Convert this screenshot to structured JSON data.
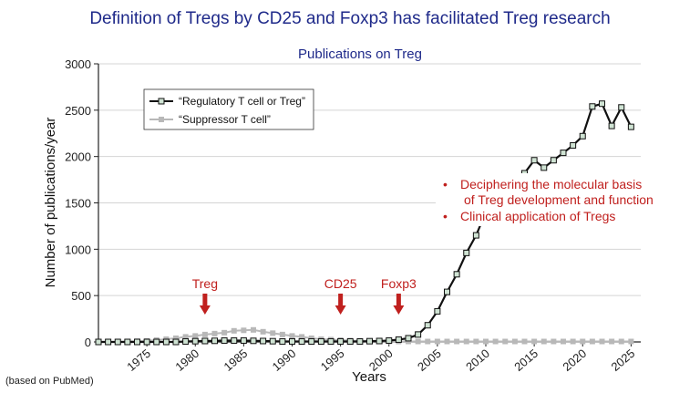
{
  "header": {
    "title": "Definition of Tregs by CD25 and Foxp3 has facilitated Treg research"
  },
  "footnote": "(based on PubMed)",
  "chart_data": {
    "type": "line",
    "title": "Publications on Treg",
    "xlabel": "Years",
    "ylabel": "Number of publications/year",
    "xlim": [
      1970,
      2026
    ],
    "ylim": [
      0,
      3000
    ],
    "xticks": [
      1975,
      1980,
      1985,
      1990,
      1995,
      2000,
      2005,
      2010,
      2015,
      2020,
      2025
    ],
    "yticks": [
      0,
      500,
      1000,
      1500,
      2000,
      2500,
      3000
    ],
    "grid": true,
    "legend_position": "top-left",
    "series": [
      {
        "name": "“Regulatory T cell or Treg”",
        "color": "#111111",
        "marker_fill": "#cfe3d3",
        "x": [
          1970,
          1971,
          1972,
          1973,
          1974,
          1975,
          1976,
          1977,
          1978,
          1979,
          1980,
          1981,
          1982,
          1983,
          1984,
          1985,
          1986,
          1987,
          1988,
          1989,
          1990,
          1991,
          1992,
          1993,
          1994,
          1995,
          1996,
          1997,
          1998,
          1999,
          2000,
          2001,
          2002,
          2003,
          2004,
          2005,
          2006,
          2007,
          2008,
          2009,
          2010,
          2014,
          2015,
          2016,
          2017,
          2018,
          2019,
          2020,
          2021,
          2022,
          2023,
          2024,
          2025
        ],
        "values": [
          0,
          0,
          0,
          0,
          0,
          0,
          0,
          0,
          0,
          5,
          8,
          10,
          12,
          15,
          15,
          15,
          12,
          10,
          8,
          5,
          5,
          5,
          5,
          5,
          5,
          5,
          5,
          5,
          8,
          10,
          15,
          25,
          40,
          80,
          180,
          330,
          540,
          730,
          960,
          1150,
          1400,
          1820,
          1960,
          1880,
          1960,
          2040,
          2120,
          2220,
          2540,
          2570,
          2330,
          2530,
          2320
        ],
        "gaps_after": [
          2010
        ]
      },
      {
        "name": "“Suppressor T cell”",
        "color": "#b8b8b8",
        "x": [
          1970,
          1971,
          1972,
          1973,
          1974,
          1975,
          1976,
          1977,
          1978,
          1979,
          1980,
          1981,
          1982,
          1983,
          1984,
          1985,
          1986,
          1987,
          1988,
          1989,
          1990,
          1991,
          1992,
          1993,
          1994,
          1995,
          1996,
          1997,
          1998,
          1999,
          2000,
          2001,
          2002,
          2003,
          2004,
          2005,
          2006,
          2007,
          2008,
          2009,
          2010,
          2011,
          2012,
          2013,
          2014,
          2015,
          2016,
          2017,
          2018,
          2019,
          2020,
          2021,
          2022,
          2023,
          2024,
          2025
        ],
        "values": [
          0,
          0,
          0,
          5,
          8,
          12,
          20,
          30,
          40,
          55,
          65,
          80,
          90,
          100,
          120,
          125,
          130,
          110,
          95,
          80,
          65,
          55,
          40,
          30,
          25,
          20,
          15,
          12,
          10,
          8,
          5,
          5,
          5,
          5,
          5,
          5,
          5,
          5,
          5,
          5,
          5,
          5,
          5,
          5,
          5,
          5,
          5,
          5,
          5,
          5,
          5,
          5,
          5,
          5,
          5,
          5
        ]
      }
    ],
    "annotations": [
      {
        "label": "Treg",
        "x": 1981
      },
      {
        "label": "CD25",
        "x": 1995
      },
      {
        "label": "Foxp3",
        "x": 2001
      }
    ],
    "bullets": [
      "Deciphering the molecular basis",
      "of Treg development and function",
      "Clinical application of Tregs"
    ],
    "bullet_symbol": "•"
  }
}
